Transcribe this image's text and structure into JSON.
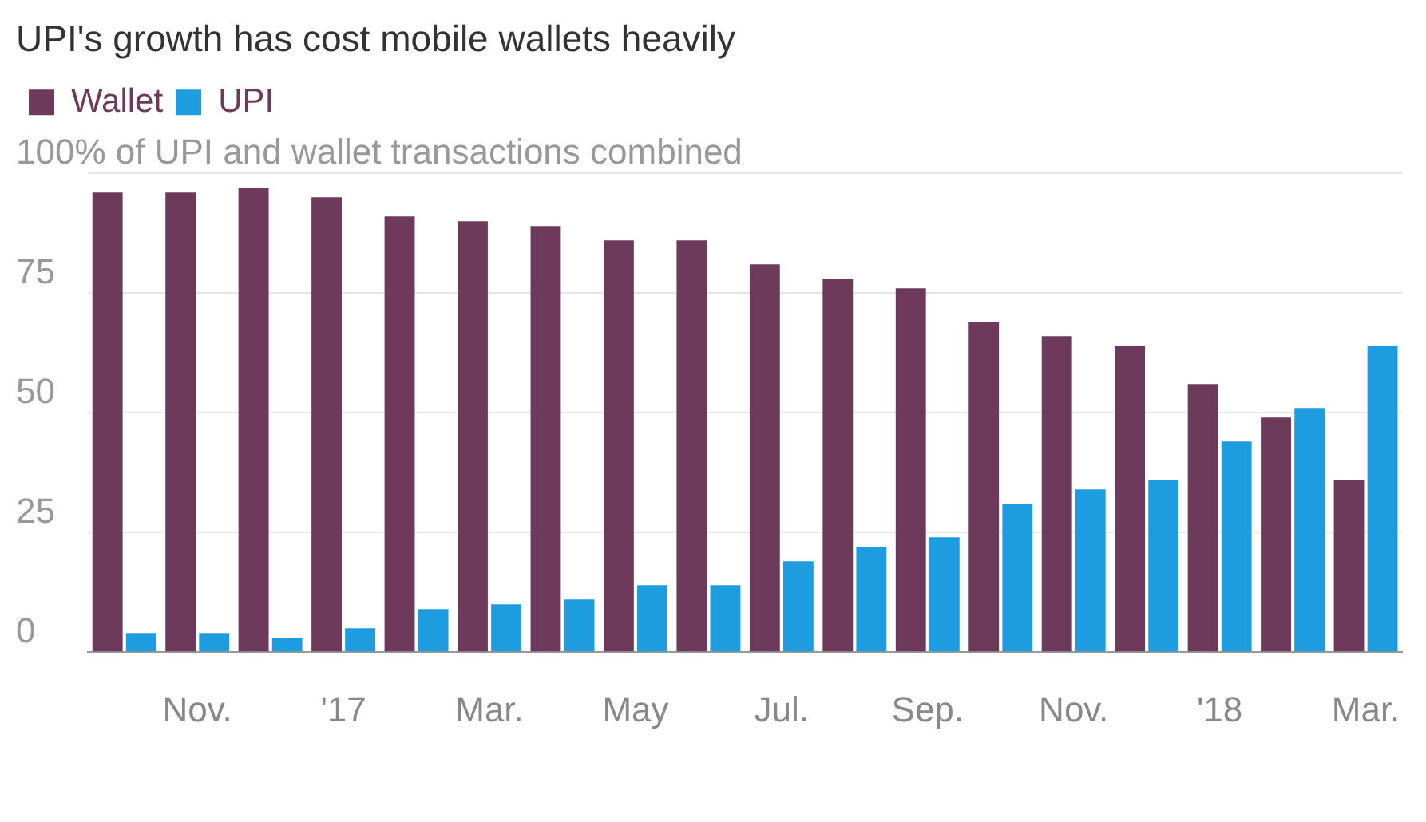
{
  "chart_data": {
    "type": "bar",
    "title": "UPI's growth has cost mobile wallets heavily",
    "categories": [
      null,
      "Nov.",
      null,
      "'17",
      null,
      "Mar.",
      null,
      "May",
      null,
      "Jul.",
      null,
      "Sep.",
      null,
      "Nov.",
      null,
      "'18",
      null,
      "Mar."
    ],
    "series": [
      {
        "name": "Wallet",
        "color": "#6e3a5c",
        "values": [
          96,
          96,
          97,
          95,
          91,
          90,
          89,
          86,
          86,
          81,
          78,
          76,
          69,
          66,
          64,
          56,
          49,
          36
        ]
      },
      {
        "name": "UPI",
        "color": "#1d9de0",
        "values": [
          4,
          4,
          3,
          5,
          9,
          10,
          11,
          14,
          14,
          19,
          22,
          24,
          31,
          34,
          36,
          44,
          51,
          64
        ]
      }
    ],
    "ylim": [
      0,
      100
    ],
    "yticks": [
      0,
      25,
      50,
      75,
      {
        "value": 100,
        "label": "100% of UPI and wallet transactions combined"
      }
    ],
    "grid": "y",
    "legend": "top left"
  }
}
